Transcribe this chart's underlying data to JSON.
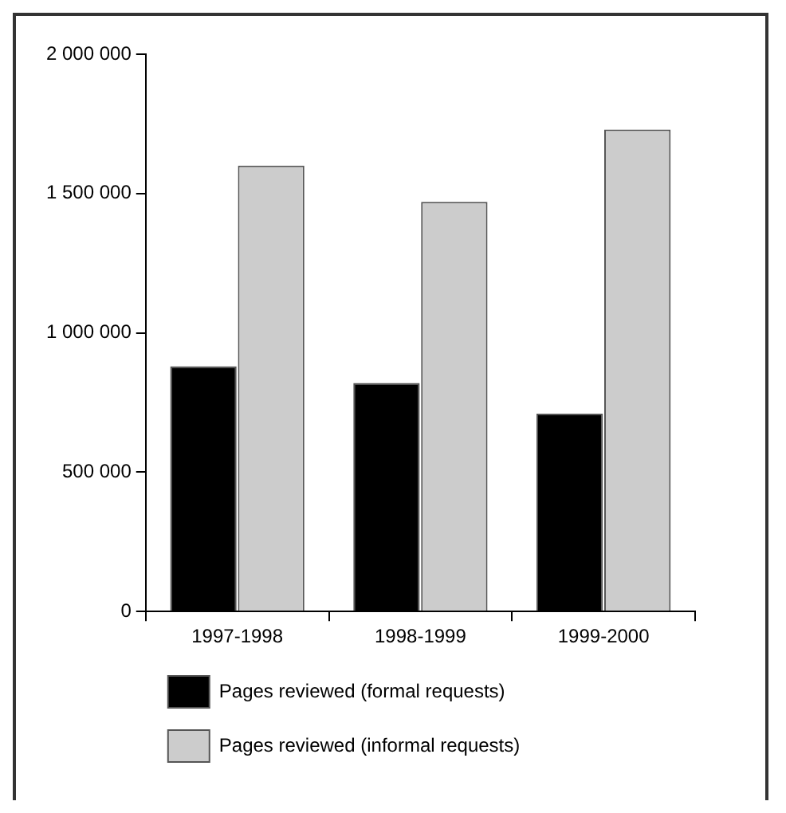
{
  "chart_data": {
    "type": "bar",
    "categories": [
      "1997-1998",
      "1998-1999",
      "1999-2000"
    ],
    "series": [
      {
        "name": "Pages reviewed (formal requests)",
        "color": "#000000",
        "values": [
          880000,
          820000,
          710000
        ]
      },
      {
        "name": "Pages reviewed (informal requests)",
        "color": "#cccccc",
        "values": [
          1600000,
          1470000,
          1730000
        ]
      }
    ],
    "ylim": [
      0,
      2000000
    ],
    "yticks": [
      {
        "value": 0,
        "label": "0"
      },
      {
        "value": 500000,
        "label": "500 000"
      },
      {
        "value": 1000000,
        "label": "1 000 000"
      },
      {
        "value": 1500000,
        "label": "1 500 000"
      },
      {
        "value": 2000000,
        "label": "2 000 000"
      }
    ],
    "grid": false,
    "legend": "bottom"
  }
}
